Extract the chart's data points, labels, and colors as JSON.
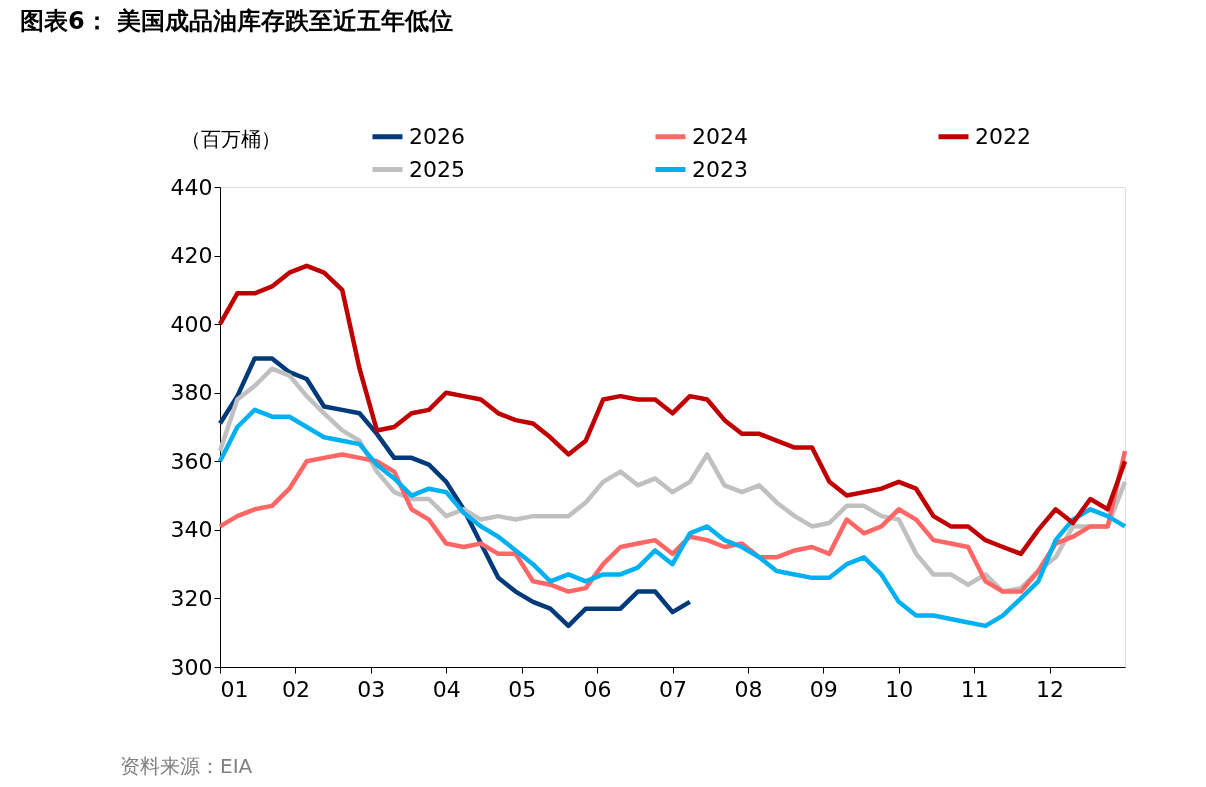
{
  "chart_data": {
    "type": "line",
    "title": "图表6：  美国成品油库存跌至近五年低位",
    "ylabel": "（百万桶）",
    "annotations": [
      "资料来源：EIA"
    ],
    "x": [
      1,
      1.23,
      1.46,
      1.69,
      1.92,
      2.15,
      2.38,
      2.62,
      2.85,
      3.08,
      3.31,
      3.54,
      3.77,
      4.0,
      4.23,
      4.46,
      4.69,
      4.92,
      5.15,
      5.38,
      5.62,
      5.85,
      6.08,
      6.31,
      6.54,
      6.77,
      7.0,
      7.23,
      7.46,
      7.69,
      7.92,
      8.15,
      8.38,
      8.62,
      8.85,
      9.08,
      9.31,
      9.54,
      9.77,
      10.0,
      10.23,
      10.46,
      10.69,
      10.92,
      11.15,
      11.38,
      11.62,
      11.85,
      12.08,
      12.31,
      12.54,
      12.77,
      13.0
    ],
    "series": [
      {
        "name": "2026",
        "color": "#003a7a",
        "values": [
          371,
          379,
          390,
          390,
          386,
          384,
          376,
          375,
          374,
          368,
          361,
          361,
          359,
          354,
          346,
          336,
          326,
          322,
          319,
          317,
          312,
          317,
          317,
          317,
          322,
          322,
          316,
          319,
          null,
          null,
          null,
          null,
          null,
          null,
          null,
          null,
          null,
          null,
          null,
          null,
          null,
          null,
          null,
          null,
          null,
          null,
          null,
          null,
          null,
          null,
          null,
          null,
          null
        ]
      },
      {
        "name": "2025",
        "color": "#c0c0c0",
        "values": [
          363,
          378,
          382,
          387,
          385,
          379,
          374,
          369,
          366,
          357,
          351,
          349,
          349,
          344,
          346,
          343,
          344,
          343,
          344,
          344,
          344,
          348,
          354,
          357,
          353,
          355,
          351,
          354,
          362,
          353,
          351,
          353,
          348,
          344,
          341,
          342,
          347,
          347,
          344,
          343,
          333,
          327,
          327,
          324,
          327,
          322,
          323,
          328,
          332,
          341,
          341,
          341,
          354
        ]
      },
      {
        "name": "2024",
        "color": "#ff6666",
        "values": [
          341,
          344,
          346,
          347,
          352,
          360,
          361,
          362,
          361,
          360,
          357,
          346,
          343,
          336,
          335,
          336,
          333,
          333,
          325,
          324,
          322,
          323,
          330,
          335,
          336,
          337,
          333,
          338,
          337,
          335,
          336,
          332,
          332,
          334,
          335,
          333,
          343,
          339,
          341,
          346,
          343,
          337,
          336,
          335,
          325,
          322,
          322,
          328,
          336,
          338,
          341,
          341,
          363
        ]
      },
      {
        "name": "2023",
        "color": "#00b0f0",
        "values": [
          360,
          370,
          375,
          373,
          373,
          370,
          367,
          366,
          365,
          359,
          355,
          350,
          352,
          351,
          345,
          341,
          338,
          334,
          330,
          325,
          327,
          325,
          327,
          327,
          329,
          334,
          330,
          339,
          341,
          337,
          335,
          332,
          328,
          327,
          326,
          326,
          330,
          332,
          327,
          319,
          315,
          315,
          314,
          313,
          312,
          315,
          320,
          325,
          337,
          343,
          346,
          344,
          341
        ]
      },
      {
        "name": "2022",
        "color": "#c00000",
        "values": [
          400,
          409,
          409,
          411,
          415,
          417,
          415,
          410,
          387,
          369,
          370,
          374,
          375,
          380,
          379,
          378,
          374,
          372,
          371,
          367,
          362,
          366,
          378,
          379,
          378,
          378,
          374,
          379,
          378,
          372,
          368,
          368,
          366,
          364,
          364,
          354,
          350,
          351,
          352,
          354,
          352,
          344,
          341,
          341,
          337,
          335,
          333,
          340,
          346,
          342,
          349,
          346,
          360
        ]
      }
    ],
    "xlim": [
      1,
      13
    ],
    "xticks": [
      {
        "value": 1,
        "label": "01"
      },
      {
        "value": 2,
        "label": "02"
      },
      {
        "value": 3,
        "label": "03"
      },
      {
        "value": 4,
        "label": "04"
      },
      {
        "value": 5,
        "label": "05"
      },
      {
        "value": 6,
        "label": "06"
      },
      {
        "value": 7,
        "label": "07"
      },
      {
        "value": 8,
        "label": "08"
      },
      {
        "value": 9,
        "label": "09"
      },
      {
        "value": 10,
        "label": "10"
      },
      {
        "value": 11,
        "label": "11"
      },
      {
        "value": 12,
        "label": "12"
      }
    ],
    "ylim": [
      300,
      440
    ],
    "yticks": [
      300,
      320,
      340,
      360,
      380,
      400,
      420,
      440
    ],
    "grid": false,
    "legend": "top",
    "marker": "none",
    "line_style": "solid"
  }
}
